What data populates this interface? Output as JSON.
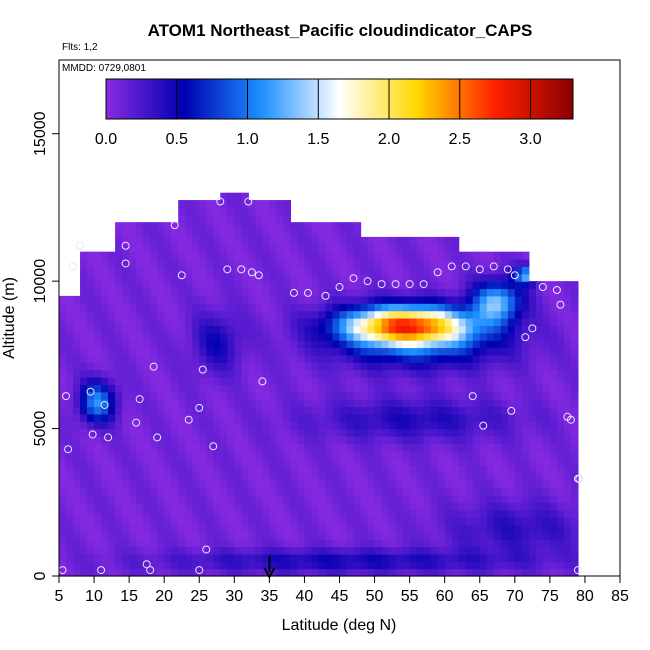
{
  "chart_data": {
    "type": "heatmap",
    "title": "ATOM1 Northeast_Pacific cloudindicator_CAPS",
    "subtitle_flights": "Flts: 1,2",
    "subtitle_dates": "MMDD: 0729,0801",
    "xlabel": "Latitude (deg N)",
    "ylabel": "Altitude (m)",
    "xlim": [
      5,
      85
    ],
    "ylim": [
      0,
      17500
    ],
    "x_ticks": [
      "5",
      "10",
      "15",
      "20",
      "25",
      "30",
      "35",
      "40",
      "45",
      "50",
      "55",
      "60",
      "65",
      "70",
      "75",
      "80",
      "85"
    ],
    "y_ticks": [
      "0",
      "5000",
      "10000",
      "15000"
    ],
    "colorbar": {
      "range": [
        0,
        3.3
      ],
      "ticks": [
        "0.0",
        "0.5",
        "1.0",
        "1.5",
        "2.0",
        "2.5",
        "3.0"
      ],
      "colors": [
        "#8a2be2",
        "#0000b0",
        "#1e90ff",
        "#ffffff",
        "#ffd700",
        "#ff2000",
        "#8b0000"
      ]
    },
    "marker": {
      "label": "35",
      "x": 35,
      "y": 0
    },
    "field_blobs": [
      {
        "x": 54,
        "y": 8400,
        "sx": 9,
        "sy": 650,
        "v": 2.3
      },
      {
        "x": 67,
        "y": 9200,
        "sx": 3.5,
        "sy": 700,
        "v": 1.2
      },
      {
        "x": 71,
        "y": 10100,
        "sx": 1.5,
        "sy": 300,
        "v": 1.1
      },
      {
        "x": 56,
        "y": 7800,
        "sx": 12,
        "sy": 900,
        "v": 0.7
      },
      {
        "x": 10,
        "y": 5800,
        "sx": 2.5,
        "sy": 700,
        "v": 1.0
      },
      {
        "x": 27,
        "y": 7800,
        "sx": 3.5,
        "sy": 1000,
        "v": 0.4
      },
      {
        "x": 55,
        "y": 5200,
        "sx": 14,
        "sy": 700,
        "v": 0.35
      },
      {
        "x": 45,
        "y": 400,
        "sx": 25,
        "sy": 400,
        "v": 0.4
      },
      {
        "x": 70,
        "y": 1500,
        "sx": 10,
        "sy": 900,
        "v": 0.3
      }
    ],
    "flight_points": [
      [
        5.5,
        200
      ],
      [
        6,
        6100
      ],
      [
        6.3,
        4300
      ],
      [
        7,
        10500
      ],
      [
        8,
        11200
      ],
      [
        9.5,
        6250
      ],
      [
        9.8,
        4800
      ],
      [
        11,
        200
      ],
      [
        11.5,
        5800
      ],
      [
        12,
        4700
      ],
      [
        14.5,
        11200
      ],
      [
        14.5,
        10600
      ],
      [
        16,
        5200
      ],
      [
        16.5,
        6000
      ],
      [
        17.5,
        400
      ],
      [
        18,
        200
      ],
      [
        18.5,
        7100
      ],
      [
        19,
        4700
      ],
      [
        21.5,
        11900
      ],
      [
        22.5,
        10200
      ],
      [
        23.5,
        5300
      ],
      [
        25,
        5700
      ],
      [
        25.5,
        7000
      ],
      [
        26,
        900
      ],
      [
        25,
        200
      ],
      [
        27,
        4400
      ],
      [
        28,
        12700
      ],
      [
        29,
        10400
      ],
      [
        31,
        10400
      ],
      [
        32,
        12700
      ],
      [
        32.5,
        10300
      ],
      [
        33.5,
        10200
      ],
      [
        34,
        6600
      ],
      [
        38.5,
        9600
      ],
      [
        40.5,
        9600
      ],
      [
        43,
        9500
      ],
      [
        45,
        9800
      ],
      [
        47,
        10100
      ],
      [
        49,
        10000
      ],
      [
        51,
        9900
      ],
      [
        53,
        9900
      ],
      [
        55,
        9900
      ],
      [
        57,
        9900
      ],
      [
        59,
        10300
      ],
      [
        61,
        10500
      ],
      [
        63,
        10500
      ],
      [
        64,
        6100
      ],
      [
        65,
        10400
      ],
      [
        65.5,
        5100
      ],
      [
        67,
        10500
      ],
      [
        69,
        10400
      ],
      [
        69.5,
        5600
      ],
      [
        70,
        10200
      ],
      [
        71.5,
        8100
      ],
      [
        72.5,
        8400
      ],
      [
        74,
        9800
      ],
      [
        76,
        9700
      ],
      [
        76.5,
        9200
      ],
      [
        77.5,
        5400
      ],
      [
        78,
        5300
      ],
      [
        79,
        3300
      ],
      [
        79.2,
        3300
      ],
      [
        79,
        200
      ]
    ]
  }
}
